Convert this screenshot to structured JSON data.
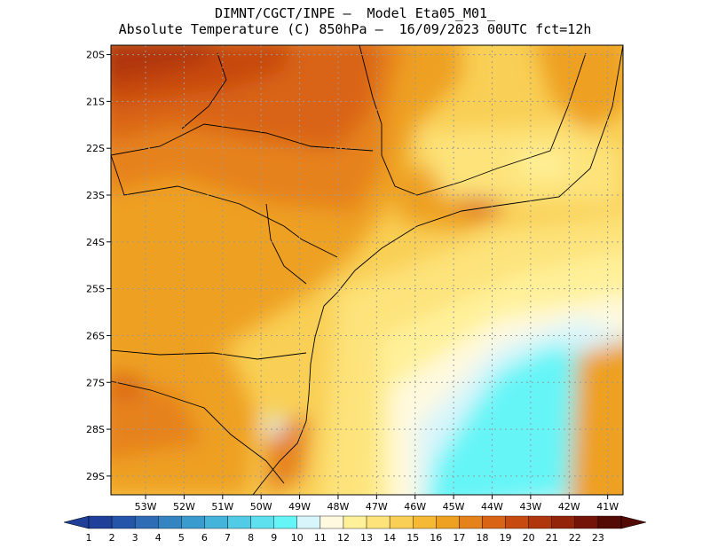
{
  "header": {
    "line1": "DIMNT/CGCT/INPE –  Model Eta05_M01_",
    "line2": "Absolute Temperature (C) 850hPa –  16/09/2023 00UTC fct=12h"
  },
  "map": {
    "lon_range": [
      -53.9,
      -40.6
    ],
    "lat_range": [
      -29.4,
      -19.8
    ],
    "lon_ticks": [
      -53,
      -52,
      -51,
      -50,
      -49,
      -48,
      -47,
      -46,
      -45,
      -44,
      -43,
      -42,
      -41
    ],
    "lon_labels": [
      "53W",
      "52W",
      "51W",
      "50W",
      "49W",
      "48W",
      "47W",
      "46W",
      "45W",
      "44W",
      "43W",
      "42W",
      "41W"
    ],
    "lat_ticks": [
      -20,
      -21,
      -22,
      -23,
      -24,
      -25,
      -26,
      -27,
      -28,
      -29
    ],
    "lat_labels": [
      "20S",
      "21S",
      "22S",
      "23S",
      "24S",
      "25S",
      "26S",
      "27S",
      "28S",
      "29S"
    ],
    "gridlines": "dotted"
  },
  "colorbar": {
    "labels": [
      "1",
      "2",
      "3",
      "4",
      "5",
      "6",
      "7",
      "8",
      "9",
      "10",
      "11",
      "12",
      "13",
      "14",
      "15",
      "16",
      "17",
      "18",
      "19",
      "20",
      "21",
      "22",
      "23"
    ],
    "colors": [
      "#1f3f99",
      "#2455a8",
      "#2e6db6",
      "#3384c1",
      "#3a9bce",
      "#45b4db",
      "#52cbe6",
      "#5fe0ef",
      "#66f5f7",
      "#d8f5fb",
      "#fff9df",
      "#fff19a",
      "#fde37a",
      "#f9cf55",
      "#f5b935",
      "#eea020",
      "#e6821c",
      "#d96415",
      "#c74a10",
      "#b0360d",
      "#93240a",
      "#741408",
      "#540a05"
    ],
    "units": "C"
  }
}
